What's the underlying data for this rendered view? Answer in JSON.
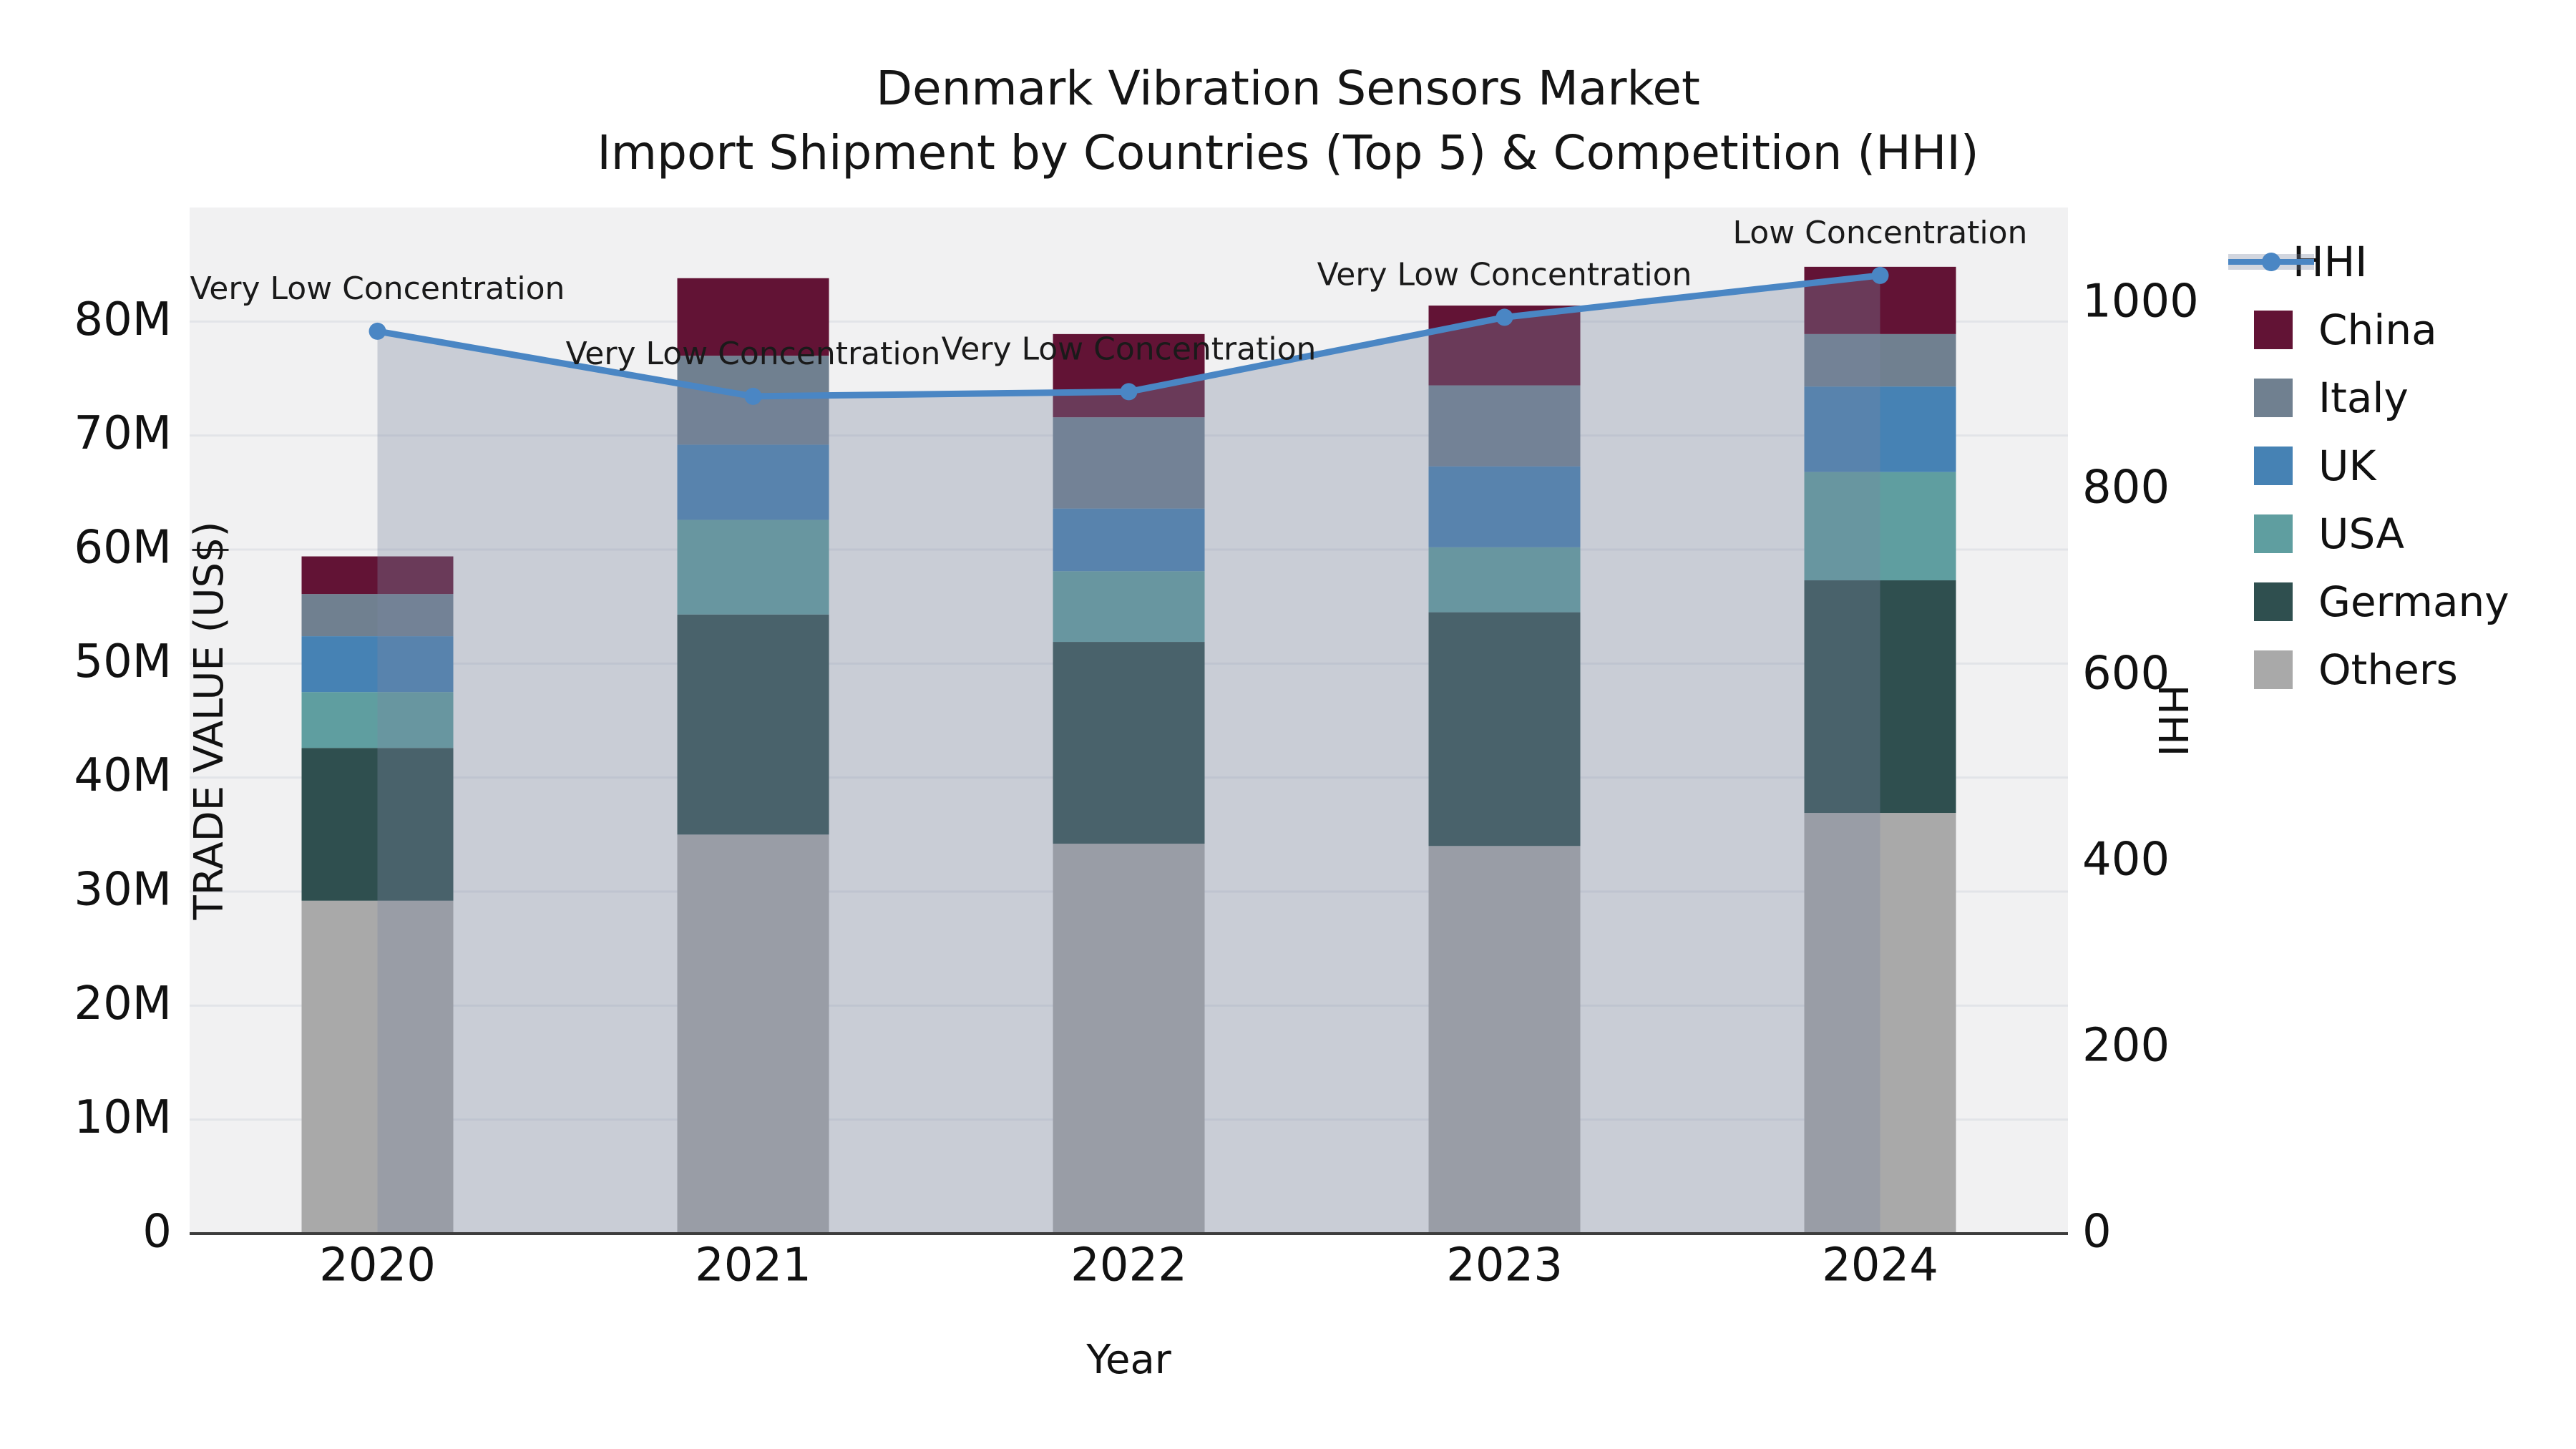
{
  "title": {
    "line1": "Denmark Vibration Sensors Market",
    "line2": "Import Shipment by Countries (Top 5) & Competition (HHI)"
  },
  "axes": {
    "x_title": "Year",
    "y_left_title": "TRADE VALUE (US$)",
    "y_right_title": "HHI",
    "y_left_tick_labels": [
      "0",
      "10M",
      "20M",
      "30M",
      "40M",
      "50M",
      "60M",
      "70M",
      "80M"
    ],
    "y_right_tick_labels": [
      "0",
      "200",
      "400",
      "600",
      "800",
      "1000"
    ],
    "x_tick_labels": [
      "2020",
      "2021",
      "2022",
      "2023",
      "2024"
    ]
  },
  "legend": {
    "order": [
      "HHI",
      "China",
      "Italy",
      "UK",
      "USA",
      "Germany",
      "Others"
    ]
  },
  "colors": {
    "China": "#621335",
    "Italy": "#708090",
    "UK": "#4682b4",
    "USA": "#5f9ea0",
    "Germany": "#2f4f4f",
    "Others": "#a9a9a9",
    "hhi_line": "#4a86c4",
    "hhi_fill": "#7a86a1",
    "hhi_fill_alpha": 0.34,
    "plot_background": "#f1f1f2",
    "gridline": "#e2e4e8",
    "axis_spine": "#3d3d3d"
  },
  "chart_data": {
    "type": "bar",
    "subtype": "stacked-bar-with-line-overlay",
    "title": "Denmark Vibration Sensors Market — Import Shipment by Countries (Top 5) & Competition (HHI)",
    "xlabel": "Year",
    "ylabel_left": "TRADE VALUE (US$)",
    "ylabel_right": "HHI",
    "unit": "million US$",
    "categories": [
      "2020",
      "2021",
      "2022",
      "2023",
      "2024"
    ],
    "stack_order_bottom_to_top": [
      "Others",
      "Germany",
      "USA",
      "UK",
      "Italy",
      "China"
    ],
    "series": [
      {
        "name": "Others",
        "values": [
          29.2,
          35.0,
          34.2,
          34.0,
          36.9
        ]
      },
      {
        "name": "Germany",
        "values": [
          13.4,
          19.3,
          17.7,
          20.5,
          20.4
        ]
      },
      {
        "name": "USA",
        "values": [
          4.9,
          8.3,
          6.2,
          5.7,
          9.5
        ]
      },
      {
        "name": "UK",
        "values": [
          4.9,
          6.6,
          5.5,
          7.1,
          7.5
        ]
      },
      {
        "name": "Italy",
        "values": [
          3.7,
          7.8,
          8.0,
          7.1,
          4.6
        ]
      },
      {
        "name": "China",
        "values": [
          3.3,
          6.8,
          7.3,
          7.0,
          5.9
        ]
      }
    ],
    "stack_totals": [
      59.4,
      83.8,
      78.9,
      81.4,
      84.8
    ],
    "line_series": {
      "name": "HHI",
      "axis": "right",
      "values": [
        970,
        900,
        905,
        985,
        1030
      ]
    },
    "annotations": [
      {
        "x": "2020",
        "text": "Very Low Concentration"
      },
      {
        "x": "2021",
        "text": "Very Low Concentration"
      },
      {
        "x": "2022",
        "text": "Very Low Concentration"
      },
      {
        "x": "2023",
        "text": "Very Low Concentration"
      },
      {
        "x": "2024",
        "text": "Low Concentration"
      }
    ],
    "ylim_left_musd": [
      0,
      90
    ],
    "ylim_right": [
      0,
      1103
    ],
    "grid": "horizontal",
    "legend_position": "outside-right-top"
  }
}
